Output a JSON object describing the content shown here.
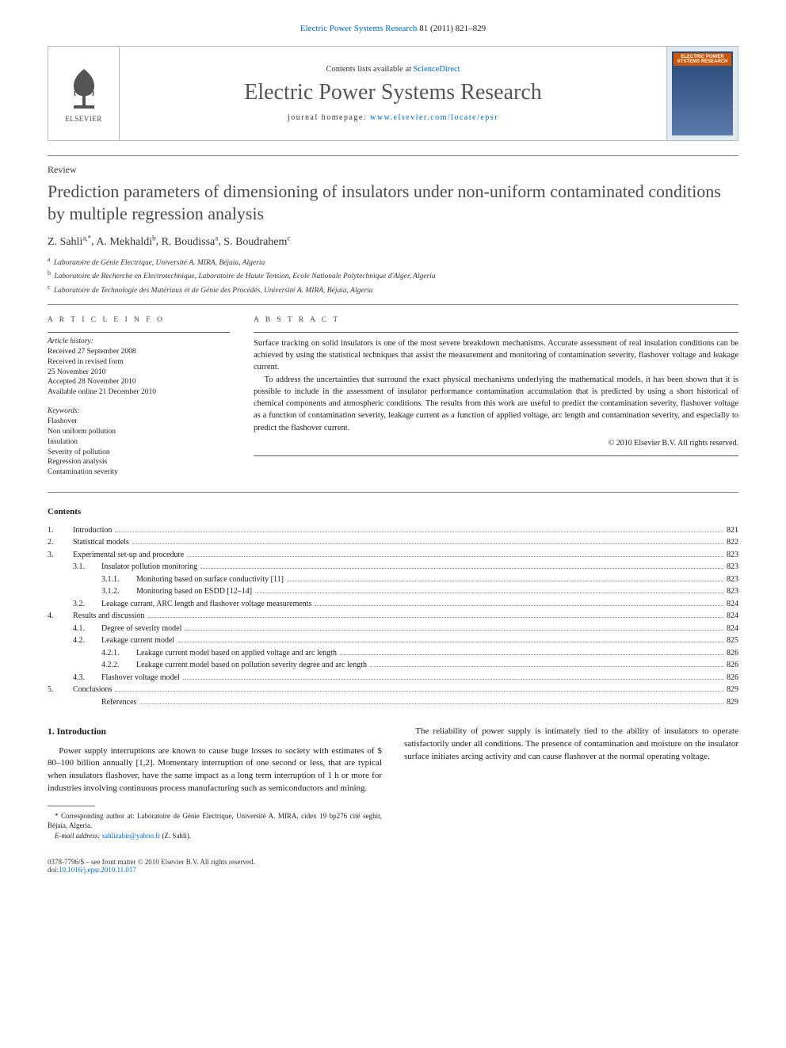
{
  "top_link": {
    "journal": "Electric Power Systems Research",
    "volume": "81 (2011) 821–829"
  },
  "masthead": {
    "contents_prefix": "Contents lists available at ",
    "contents_link": "ScienceDirect",
    "journal_name": "Electric Power Systems Research",
    "homepage_prefix": "journal homepage: ",
    "homepage_url": "www.elsevier.com/locate/epsr",
    "publisher_label": "ELSEVIER",
    "cover_text": "ELECTRIC POWER SYSTEMS RESEARCH"
  },
  "article_type": "Review",
  "title": "Prediction parameters of dimensioning of insulators under non-uniform contaminated conditions by multiple regression analysis",
  "authors": [
    {
      "name": "Z. Sahli",
      "marks": "a,*"
    },
    {
      "name": "A. Mekhaldi",
      "marks": "b"
    },
    {
      "name": "R. Boudissa",
      "marks": "a"
    },
    {
      "name": "S. Boudrahem",
      "marks": "c"
    }
  ],
  "affiliations": [
    {
      "mark": "a",
      "text": "Laboratoire de Génie Electrique, Université A. MIRA, Béjaia, Algeria"
    },
    {
      "mark": "b",
      "text": "Laboratoire de Recherche en Electrotechnique, Laboratoire de Haute Tension, Ecole Nationale Polytechnique d'Alger, Algeria"
    },
    {
      "mark": "c",
      "text": "Laboratoire de Technologie des Matériaux et de Génie des Procédés, Université A. MIRA, Béjaia, Algeria"
    }
  ],
  "info_heading": "A R T I C L E   I N F O",
  "abstract_heading": "A B S T R A C T",
  "history": {
    "label": "Article history:",
    "lines": [
      "Received 27 September 2008",
      "Received in revised form",
      "25 November 2010",
      "Accepted 28 November 2010",
      "Available online 21 December 2010"
    ]
  },
  "keywords": {
    "label": "Keywords:",
    "items": [
      "Flashover",
      "Non uniform pollution",
      "Insulation",
      "Severity of pollution",
      "Regression analysis",
      "Contamination severity"
    ]
  },
  "abstract_paragraphs": [
    "Surface tracking on solid insulators is one of the most severe breakdown mechanisms. Accurate assessment of real insulation conditions can be achieved by using the statistical techniques that assist the measurement and monitoring of contamination severity, flashover voltage and leakage current.",
    "To address the uncertainties that surround the exact physical mechanisms underlying the mathematical models, it has been shown that it is possible to include in the assessment of insulator performance contamination accumulation that is predicted by using a short historical of chemical components and atmospheric conditions. The results from this work are useful to predict the contamination severity, flashover voltage as a function of contamination severity, leakage current as a function of applied voltage, arc length and contamination severity, and especially to predict the flashover current."
  ],
  "copyright": "© 2010 Elsevier B.V. All rights reserved.",
  "contents_heading": "Contents",
  "toc": [
    {
      "level": 0,
      "num": "1.",
      "label": "Introduction",
      "page": "821"
    },
    {
      "level": 0,
      "num": "2.",
      "label": "Statistical models",
      "page": "822"
    },
    {
      "level": 0,
      "num": "3.",
      "label": "Experimental set-up and procedure",
      "page": "823"
    },
    {
      "level": 1,
      "num": "3.1.",
      "label": "Insulator pollution monitoring",
      "page": "823"
    },
    {
      "level": 2,
      "num": "3.1.1.",
      "label": "Monitoring based on surface conductivity [11]",
      "page": "823"
    },
    {
      "level": 2,
      "num": "3.1.2.",
      "label": "Monitoring based on ESDD [12–14]",
      "page": "823"
    },
    {
      "level": 1,
      "num": "3.2.",
      "label": "Leakage currant, ARC length and flashover voltage measurements",
      "page": "824"
    },
    {
      "level": 0,
      "num": "4.",
      "label": "Results and discussion",
      "page": "824"
    },
    {
      "level": 1,
      "num": "4.1.",
      "label": "Degree of severity model",
      "page": "824"
    },
    {
      "level": 1,
      "num": "4.2.",
      "label": "Leakage current model",
      "page": "825"
    },
    {
      "level": 2,
      "num": "4.2.1.",
      "label": "Leakage current model based on applied voltage and arc length",
      "page": "826"
    },
    {
      "level": 2,
      "num": "4.2.2.",
      "label": "Leakage current model based on pollution severity degree and arc length",
      "page": "826"
    },
    {
      "level": 1,
      "num": "4.3.",
      "label": "Flashover voltage model",
      "page": "826"
    },
    {
      "level": 0,
      "num": "5.",
      "label": "Conclusions",
      "page": "829"
    },
    {
      "level": 1,
      "num": "",
      "label": "References",
      "page": "829"
    }
  ],
  "section1": {
    "heading": "1. Introduction",
    "paragraphs": [
      "Power supply interruptions are known to cause huge losses to society with estimates of $ 80–100 billion annually [1,2]. Momentary interruption of one second or less, that are typical when insulators flashover, have the same impact as a long term interruption of 1 h or more for industries involving continuous process manufacturing such as semiconductors and mining.",
      "The reliability of power supply is intimately tied to the ability of insulators to operate satisfactorily under all conditions. The presence of contamination and moisture on the insulator surface initiates arcing activity and can cause flashover at the normal operating voltage."
    ]
  },
  "footnotes": {
    "corr": "* Corresponding author at: Laboratoire de Génie Electrique, Université A. MIRA, cidex 19 bp276 cité seghir, Béjaia, Algeria.",
    "email_label": "E-mail address: ",
    "email": "sahlizahir@yahoo.fr",
    "email_suffix": " (Z. Sahli)."
  },
  "footer": {
    "left_line1": "0378-7796/$ – see front matter © 2010 Elsevier B.V. All rights reserved.",
    "left_line2_prefix": "doi:",
    "doi": "10.1016/j.epsr.2010.11.017"
  },
  "colors": {
    "link": "#0066cc",
    "text": "#1a1a1a",
    "heading_gray": "#4a4a4a",
    "rule": "#888888",
    "elsevier_orange": "#ff8800",
    "cover_bg_top": "#2a4a7a",
    "cover_title_bg": "#cc5500"
  },
  "typography": {
    "body_pt": 11,
    "title_pt": 22,
    "journal_name_pt": 28,
    "small_pt": 9.5,
    "font_family": "Georgia, Times, serif"
  }
}
